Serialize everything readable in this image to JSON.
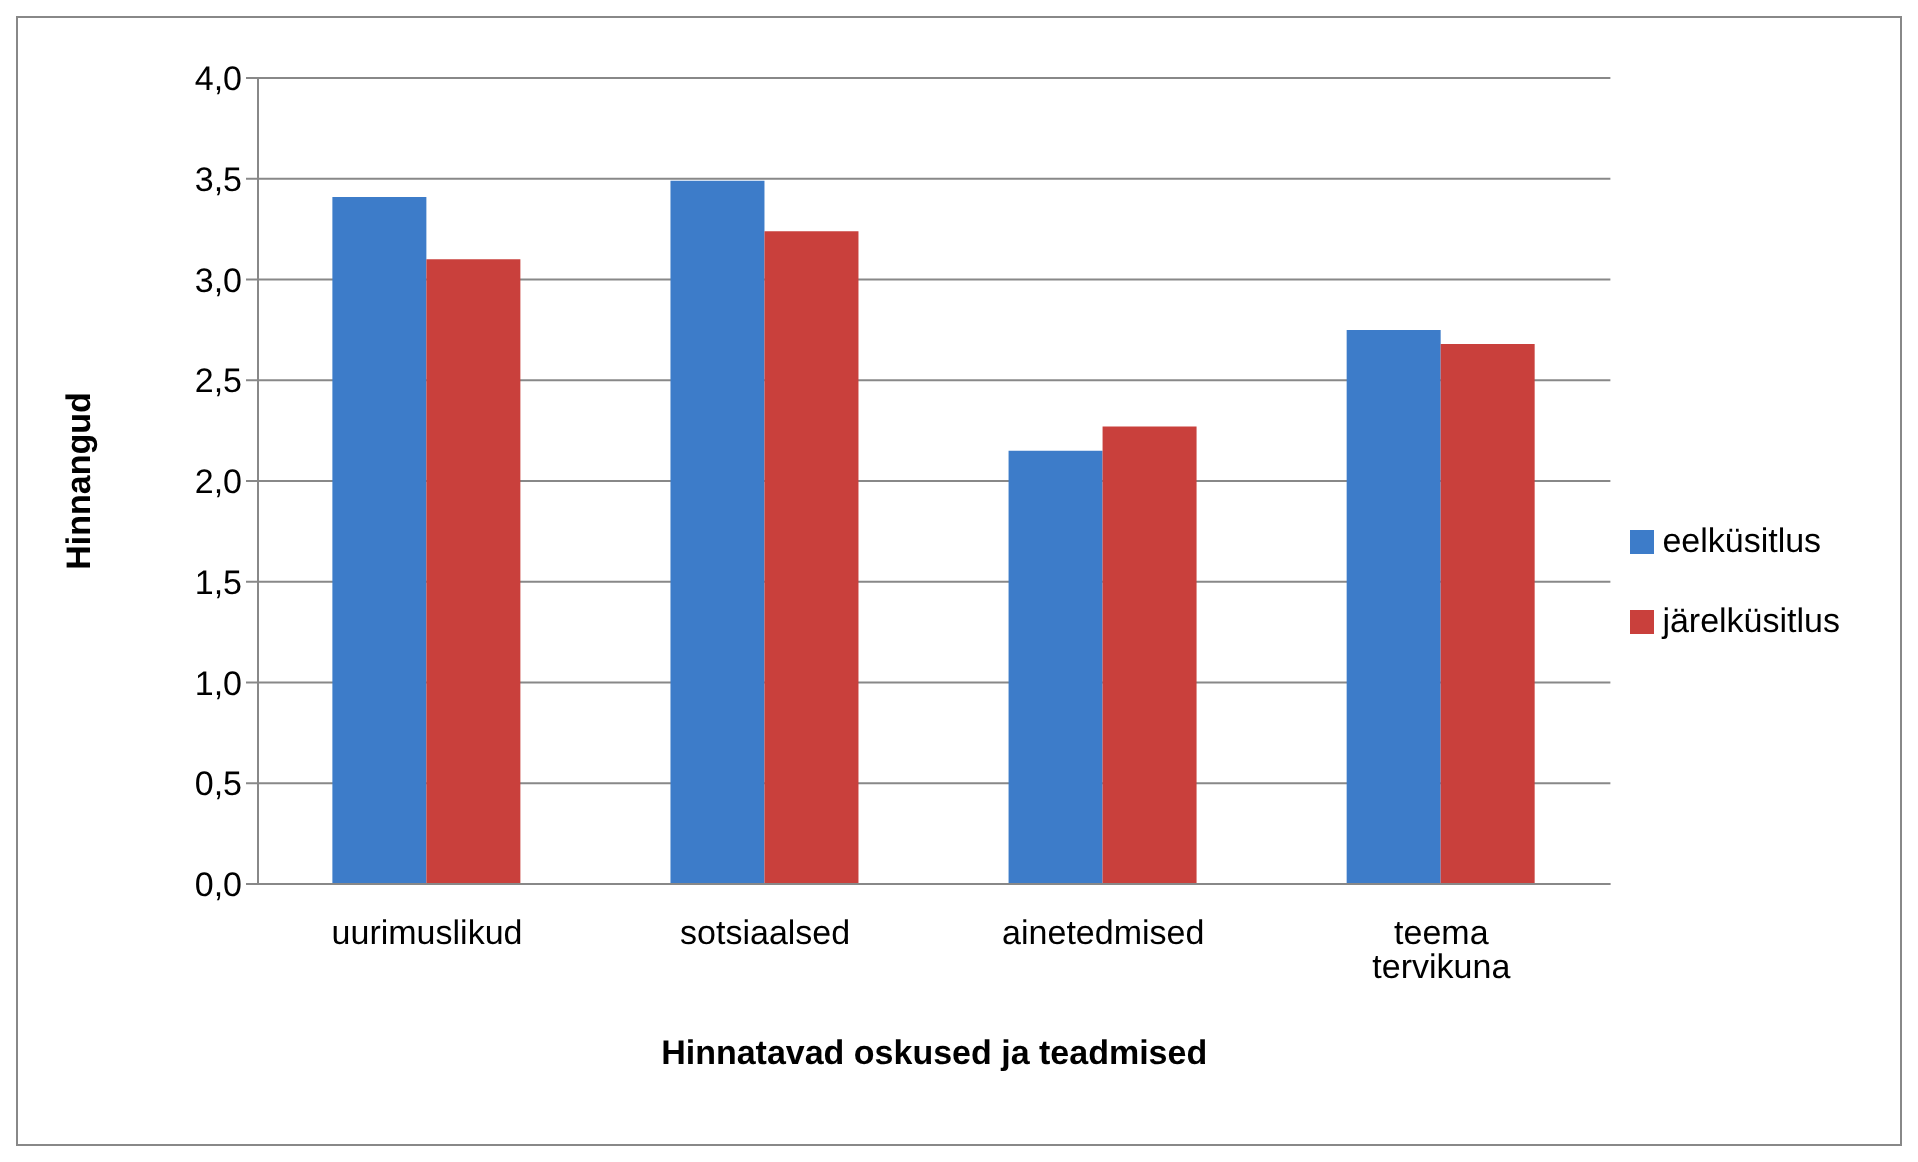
{
  "chart_data": {
    "type": "bar",
    "ylabel": "Hinnangud",
    "xlabel": "Hinnatavad oskused ja teadmised",
    "categories": [
      "uurimuslikud",
      "sotsiaalsed",
      "ainetedmised",
      "teema tervikuna"
    ],
    "series": [
      {
        "name": "eelküsitlus",
        "color": "#3d7cc9",
        "values": [
          3.41,
          3.49,
          2.15,
          2.75
        ]
      },
      {
        "name": "järelküsitlus",
        "color": "#c9403c",
        "values": [
          3.1,
          3.24,
          2.27,
          2.68
        ]
      }
    ],
    "ylim": [
      0,
      4
    ],
    "yticks": [
      {
        "value": 0,
        "label": "0,0"
      },
      {
        "value": 0.5,
        "label": "0,5"
      },
      {
        "value": 1,
        "label": "1,0"
      },
      {
        "value": 1.5,
        "label": "1,5"
      },
      {
        "value": 2,
        "label": "2,0"
      },
      {
        "value": 2.5,
        "label": "2,5"
      },
      {
        "value": 3,
        "label": "3,0"
      },
      {
        "value": 3.5,
        "label": "3,5"
      },
      {
        "value": 4,
        "label": "4,0"
      }
    ],
    "grid": "y",
    "legend": "right"
  }
}
